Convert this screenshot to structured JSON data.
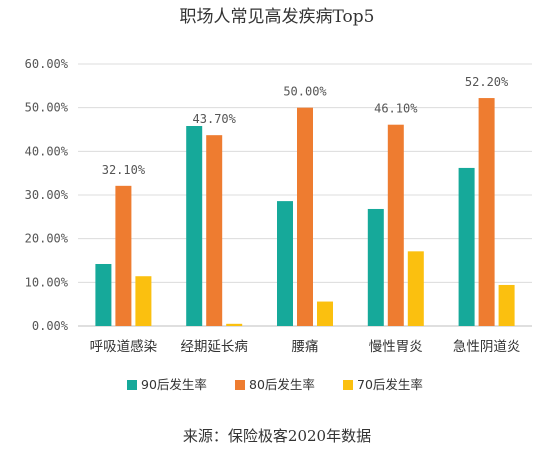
{
  "chart_data": {
    "type": "bar",
    "title": "职场人常见高发疾病Top5",
    "categories": [
      "呼吸道感染",
      "经期延长病",
      "腰痛",
      "慢性胃炎",
      "急性阴道炎"
    ],
    "series": [
      {
        "name": "90后发生率",
        "color": "#16a99a",
        "values": [
          14.2,
          45.8,
          28.6,
          26.8,
          36.2
        ]
      },
      {
        "name": "80后发生率",
        "color": "#ee7c30",
        "values": [
          32.1,
          43.7,
          50.0,
          46.1,
          52.2
        ]
      },
      {
        "name": "70后发生率",
        "color": "#fbc00f",
        "values": [
          11.4,
          0.5,
          5.6,
          17.1,
          9.4
        ]
      }
    ],
    "data_labels": [
      "32.10%",
      "43.70%",
      "50.00%",
      "46.10%",
      "52.20%"
    ],
    "y_ticks": [
      "0.00%",
      "10.00%",
      "20.00%",
      "30.00%",
      "40.00%",
      "50.00%",
      "60.00%"
    ],
    "ylim": [
      0,
      60
    ],
    "ytick_step": 10,
    "grid": true,
    "legend_position": "bottom"
  },
  "source": "来源：保险极客2020年数据"
}
